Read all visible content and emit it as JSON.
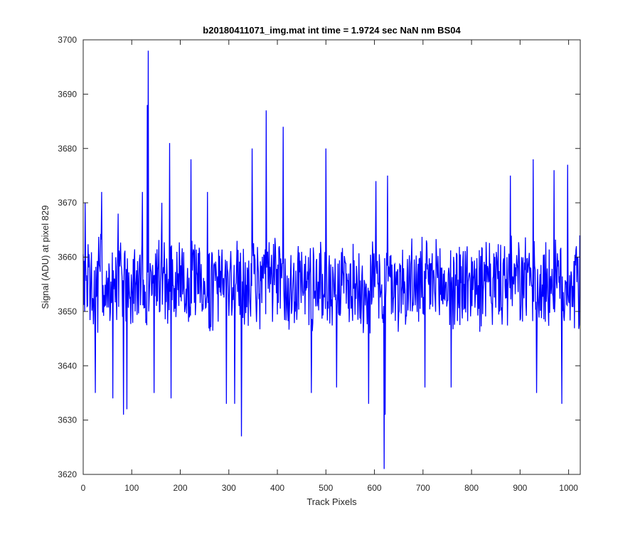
{
  "chart_data": {
    "type": "line",
    "title": "b20180411071_img.mat int time = 1.9724 sec  NaN nm BS04",
    "xlabel": "Track Pixels",
    "ylabel": "Signal (ADU) at pixel 829",
    "xlim": [
      0,
      1024
    ],
    "ylim": [
      3620,
      3700
    ],
    "xticks": [
      0,
      100,
      200,
      300,
      400,
      500,
      600,
      700,
      800,
      900,
      1000
    ],
    "yticks": [
      3620,
      3630,
      3640,
      3650,
      3660,
      3670,
      3680,
      3690,
      3700
    ],
    "grid": false,
    "box": true,
    "series": [
      {
        "color": "#0000ff",
        "n_points": 1024,
        "baseline": 3655,
        "noise_amplitude": 7,
        "peaks": [
          {
            "x": 4,
            "y": 3670
          },
          {
            "x": 25,
            "y": 3635
          },
          {
            "x": 38,
            "y": 3672
          },
          {
            "x": 61,
            "y": 3634
          },
          {
            "x": 72,
            "y": 3668
          },
          {
            "x": 83,
            "y": 3631
          },
          {
            "x": 90,
            "y": 3632
          },
          {
            "x": 122,
            "y": 3672
          },
          {
            "x": 132,
            "y": 3688
          },
          {
            "x": 134,
            "y": 3698
          },
          {
            "x": 146,
            "y": 3635
          },
          {
            "x": 162,
            "y": 3670
          },
          {
            "x": 178,
            "y": 3681
          },
          {
            "x": 181,
            "y": 3634
          },
          {
            "x": 222,
            "y": 3678
          },
          {
            "x": 256,
            "y": 3672
          },
          {
            "x": 295,
            "y": 3633
          },
          {
            "x": 312,
            "y": 3633
          },
          {
            "x": 326,
            "y": 3627
          },
          {
            "x": 348,
            "y": 3680
          },
          {
            "x": 377,
            "y": 3687
          },
          {
            "x": 404,
            "y": 3662
          },
          {
            "x": 412,
            "y": 3684
          },
          {
            "x": 470,
            "y": 3635
          },
          {
            "x": 500,
            "y": 3680
          },
          {
            "x": 522,
            "y": 3636
          },
          {
            "x": 588,
            "y": 3633
          },
          {
            "x": 603,
            "y": 3674
          },
          {
            "x": 620,
            "y": 3621
          },
          {
            "x": 622,
            "y": 3631
          },
          {
            "x": 627,
            "y": 3675
          },
          {
            "x": 704,
            "y": 3636
          },
          {
            "x": 758,
            "y": 3636
          },
          {
            "x": 880,
            "y": 3675
          },
          {
            "x": 927,
            "y": 3678
          },
          {
            "x": 934,
            "y": 3635
          },
          {
            "x": 970,
            "y": 3676
          },
          {
            "x": 986,
            "y": 3633
          },
          {
            "x": 998,
            "y": 3677
          },
          {
            "x": 1023,
            "y": 3664
          }
        ]
      }
    ]
  }
}
